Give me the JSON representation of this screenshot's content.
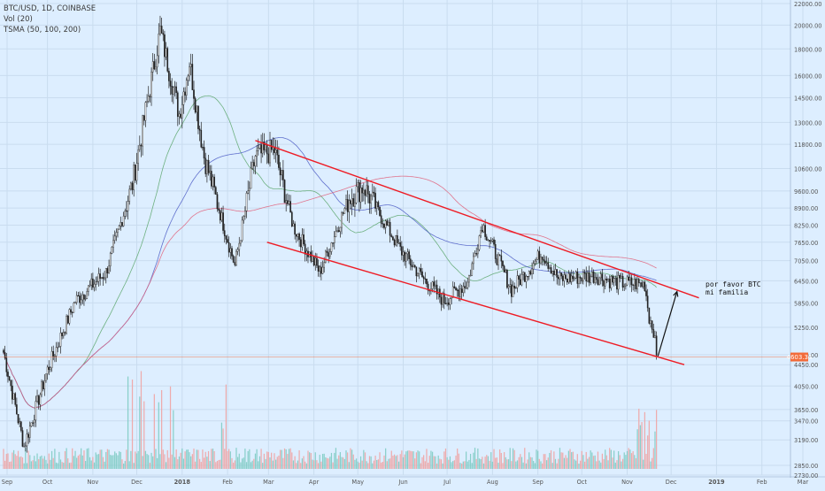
{
  "header": {
    "symbol": "BTC/USD, 1D, COINBASE",
    "indicator_volume": "Vol (20)",
    "indicator_ma": "TSMA (50, 100, 200)"
  },
  "price_tag": "4603.34",
  "annotation": {
    "line1": "por favor BTC",
    "line2": "mi familia"
  },
  "colors": {
    "background": "#ddeeff",
    "grid": "#c9dcef",
    "up": "#ffffff",
    "down": "#222222",
    "wick": "#222222",
    "ma50": "#5aa66b",
    "ma100": "#4b5bc4",
    "ma200": "#e0607a",
    "channel": "#ee1c25",
    "vol_up": "#7fcbc4",
    "vol_down": "#f0a3a3",
    "price_tag": "#f26b3a"
  },
  "chart_data": {
    "type": "candlestick",
    "title": "BTC/USD, 1D, COINBASE",
    "yscale": "log",
    "ylim": [
      2550,
      22000
    ],
    "y_ticks": [
      22000,
      20000,
      18000,
      16000,
      14500,
      13000,
      11800,
      10600,
      9600,
      8900,
      8250,
      7650,
      7050,
      6450,
      5850,
      5250,
      4650,
      4450,
      4050,
      3650,
      3470,
      3190,
      2850,
      2730
    ],
    "x_ticks": [
      "Sep",
      "Oct",
      "Nov",
      "Dec",
      "2018",
      "Feb",
      "Mar",
      "Apr",
      "May",
      "Jun",
      "Jul",
      "Aug",
      "Sep",
      "Oct",
      "Nov",
      "Dec",
      "2019",
      "Feb",
      "Mar"
    ],
    "price_anchors": [
      {
        "date": "2017-09-01",
        "close": 4700
      },
      {
        "date": "2017-09-15",
        "close": 3100
      },
      {
        "date": "2017-10-01",
        "close": 4350
      },
      {
        "date": "2017-10-20",
        "close": 5900
      },
      {
        "date": "2017-11-10",
        "close": 6700
      },
      {
        "date": "2017-11-28",
        "close": 9900
      },
      {
        "date": "2017-12-17",
        "close": 19500
      },
      {
        "date": "2017-12-30",
        "close": 13500
      },
      {
        "date": "2018-01-06",
        "close": 17000
      },
      {
        "date": "2018-01-16",
        "close": 11200
      },
      {
        "date": "2018-02-06",
        "close": 6900
      },
      {
        "date": "2018-02-20",
        "close": 11200
      },
      {
        "date": "2018-03-05",
        "close": 11500
      },
      {
        "date": "2018-03-18",
        "close": 8200
      },
      {
        "date": "2018-04-05",
        "close": 6700
      },
      {
        "date": "2018-04-25",
        "close": 9300
      },
      {
        "date": "2018-05-05",
        "close": 9800
      },
      {
        "date": "2018-05-30",
        "close": 7400
      },
      {
        "date": "2018-06-15",
        "close": 6500
      },
      {
        "date": "2018-06-29",
        "close": 5900
      },
      {
        "date": "2018-07-15",
        "close": 6400
      },
      {
        "date": "2018-07-25",
        "close": 8300
      },
      {
        "date": "2018-08-14",
        "close": 6200
      },
      {
        "date": "2018-09-04",
        "close": 7300
      },
      {
        "date": "2018-09-15",
        "close": 6500
      },
      {
        "date": "2018-10-10",
        "close": 6600
      },
      {
        "date": "2018-10-25",
        "close": 6400
      },
      {
        "date": "2018-11-13",
        "close": 6350
      },
      {
        "date": "2018-11-16",
        "close": 5500
      },
      {
        "date": "2018-11-19",
        "close": 5200
      },
      {
        "date": "2018-11-21",
        "close": 4600
      }
    ],
    "volume_scale": [
      0,
      1
    ]
  }
}
